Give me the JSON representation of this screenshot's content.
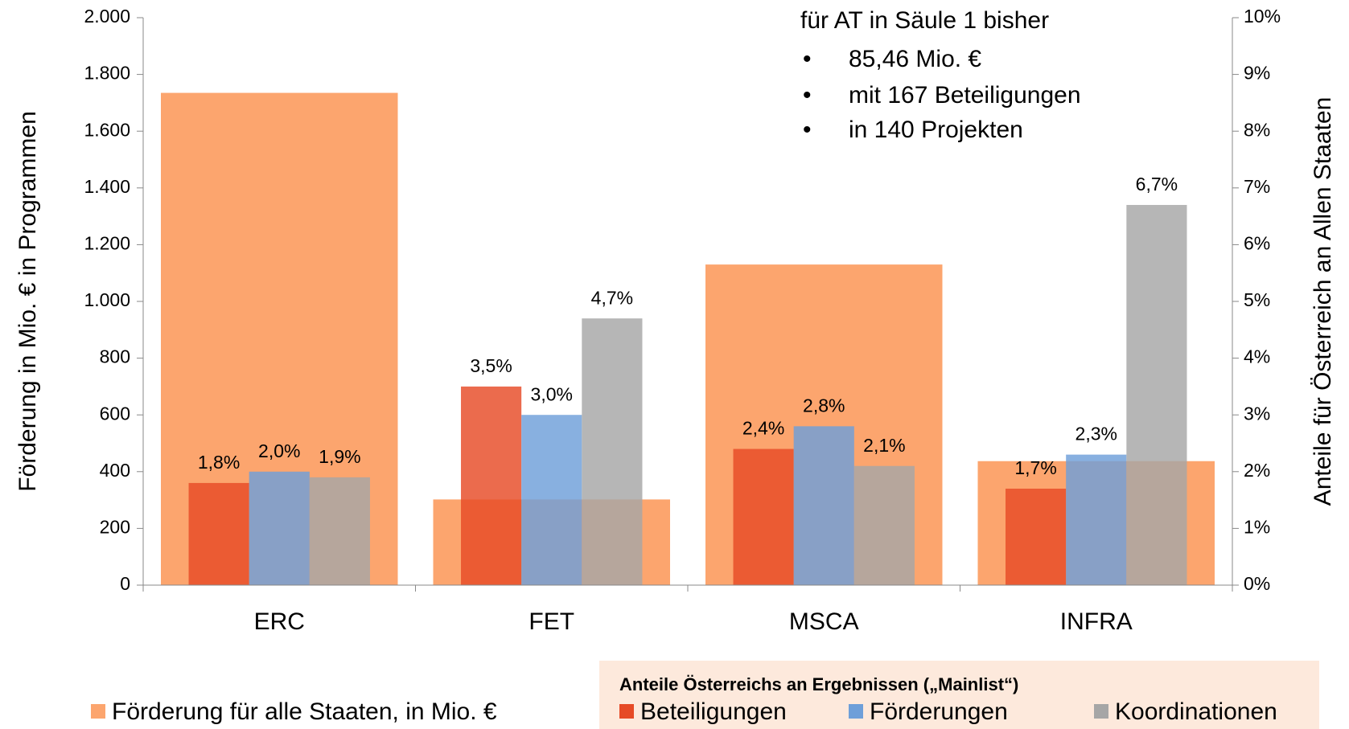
{
  "chart_data": {
    "type": "bar",
    "y_label": "Förderung in Mio. € in Programmen",
    "y2_label": "Anteile für Österreich an Allen Staaten",
    "annotation": {
      "title": "für AT in Säule 1 bisher",
      "bullets": [
        "85,46 Mio. €",
        "mit 167 Beteiligungen",
        "in 140 Projekten"
      ]
    },
    "legend_title": "Anteile Österreichs an Ergebnissen („Mainlist“)",
    "categories": [
      "ERC",
      "FET",
      "MSCA",
      "INFRA"
    ],
    "ylim": [
      0,
      2000
    ],
    "yticks": [
      0,
      200,
      400,
      600,
      800,
      {
        "value": 1000,
        "label": "1.000"
      },
      {
        "value": 1200,
        "label": "1.200"
      },
      {
        "value": 1400,
        "label": "1.400"
      },
      {
        "value": 1600,
        "label": "1.600"
      },
      {
        "value": 1800,
        "label": "1.800"
      },
      {
        "value": 2000,
        "label": "2.000"
      }
    ],
    "y2lim": [
      0,
      10
    ],
    "y2ticks": [
      {
        "value": 0,
        "label": "0%"
      },
      {
        "value": 1,
        "label": "1%"
      },
      {
        "value": 2,
        "label": "2%"
      },
      {
        "value": 3,
        "label": "3%"
      },
      {
        "value": 4,
        "label": "4%"
      },
      {
        "value": 5,
        "label": "5%"
      },
      {
        "value": 6,
        "label": "6%"
      },
      {
        "value": 7,
        "label": "7%"
      },
      {
        "value": 8,
        "label": "8%"
      },
      {
        "value": 9,
        "label": "9%"
      },
      {
        "value": 10,
        "label": "10%"
      }
    ],
    "series": [
      {
        "name": "Förderung für alle Staaten, in Mio. €",
        "color": "#fca56e",
        "values": [
          1735,
          302,
          1130,
          437
        ]
      },
      {
        "name": "Beteiligungen",
        "color": "#e64a26",
        "axis": "y2",
        "values": [
          1.8,
          3.5,
          2.4,
          1.7
        ],
        "value_labels": [
          "1,8%",
          "3,5%",
          "2,4%",
          "1,7%"
        ]
      },
      {
        "name": "Förderungen",
        "color": "#6e9fd9",
        "axis": "y2",
        "values": [
          2.0,
          3.0,
          2.8,
          2.3
        ],
        "value_labels": [
          "2,0%",
          "3,0%",
          "2,8%",
          "2,3%"
        ]
      },
      {
        "name": "Koordinationen",
        "color": "#a6a6a6",
        "axis": "y2",
        "values": [
          1.9,
          4.7,
          2.1,
          6.7
        ],
        "value_labels": [
          "1,9%",
          "4,7%",
          "2,1%",
          "6,7%"
        ]
      }
    ]
  }
}
